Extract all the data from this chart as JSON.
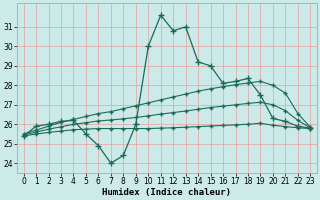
{
  "xlabel": "Humidex (Indice chaleur)",
  "background_color": "#cceae8",
  "grid_color": "#e8a0a0",
  "line_color": "#1a6b5a",
  "xlim": [
    -0.5,
    23.5
  ],
  "ylim": [
    23.5,
    32.2
  ],
  "xticks": [
    0,
    1,
    2,
    3,
    4,
    5,
    6,
    7,
    8,
    9,
    10,
    11,
    12,
    13,
    14,
    15,
    16,
    17,
    18,
    19,
    20,
    21,
    22,
    23
  ],
  "yticks": [
    24,
    25,
    26,
    27,
    28,
    29,
    30,
    31
  ],
  "series": {
    "main": {
      "x": [
        0,
        1,
        2,
        3,
        4,
        5,
        6,
        7,
        8,
        9,
        10,
        11,
        12,
        13,
        14,
        15,
        16,
        17,
        18,
        19,
        20,
        21,
        22,
        23
      ],
      "y": [
        25.4,
        25.9,
        26.0,
        26.15,
        26.2,
        25.5,
        24.9,
        24.0,
        24.4,
        26.0,
        30.0,
        31.6,
        30.8,
        31.0,
        29.2,
        29.0,
        28.1,
        28.2,
        28.35,
        27.5,
        26.3,
        26.15,
        25.9,
        25.8
      ]
    },
    "upper": {
      "x": [
        0,
        1,
        2,
        3,
        4,
        5,
        6,
        7,
        8,
        9,
        10,
        11,
        12,
        13,
        14,
        15,
        16,
        17,
        18,
        19,
        20,
        21,
        22,
        23
      ],
      "y": [
        25.5,
        25.7,
        25.9,
        26.1,
        26.25,
        26.4,
        26.55,
        26.65,
        26.8,
        26.95,
        27.1,
        27.25,
        27.4,
        27.55,
        27.7,
        27.82,
        27.93,
        28.03,
        28.12,
        28.2,
        28.0,
        27.6,
        26.55,
        25.85
      ]
    },
    "mid": {
      "x": [
        0,
        1,
        2,
        3,
        4,
        5,
        6,
        7,
        8,
        9,
        10,
        11,
        12,
        13,
        14,
        15,
        16,
        17,
        18,
        19,
        20,
        21,
        22,
        23
      ],
      "y": [
        25.45,
        25.6,
        25.75,
        25.87,
        26.0,
        26.08,
        26.17,
        26.22,
        26.28,
        26.35,
        26.43,
        26.52,
        26.6,
        26.68,
        26.77,
        26.86,
        26.93,
        27.0,
        27.07,
        27.13,
        27.0,
        26.7,
        26.2,
        25.82
      ]
    },
    "lower": {
      "x": [
        0,
        1,
        2,
        3,
        4,
        5,
        6,
        7,
        8,
        9,
        10,
        11,
        12,
        13,
        14,
        15,
        16,
        17,
        18,
        19,
        20,
        21,
        22,
        23
      ],
      "y": [
        25.4,
        25.5,
        25.58,
        25.65,
        25.72,
        25.75,
        25.78,
        25.78,
        25.78,
        25.78,
        25.78,
        25.8,
        25.82,
        25.85,
        25.88,
        25.91,
        25.94,
        25.97,
        26.0,
        26.05,
        25.95,
        25.88,
        25.82,
        25.78
      ]
    }
  }
}
